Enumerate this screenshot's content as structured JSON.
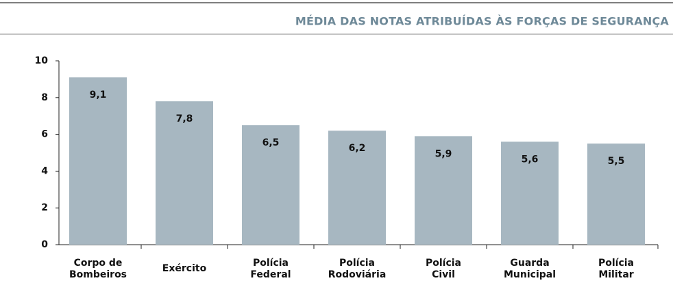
{
  "chart_data": {
    "type": "bar",
    "title": "MÉDIA DAS NOTAS ATRIBUÍDAS ÀS FORÇAS DE SEGURANÇA",
    "categories": [
      "Corpo de\nBombeiros",
      "Exército",
      "Polícia\nFederal",
      "Polícia\nRodoviária",
      "Polícia\nCivil",
      "Guarda\nMunicipal",
      "Polícia\nMilitar"
    ],
    "values": [
      9.1,
      7.8,
      6.5,
      6.2,
      5.9,
      5.6,
      5.5
    ],
    "value_labels": [
      "9,1",
      "7,8",
      "6,5",
      "6,2",
      "5,9",
      "5,6",
      "5,5"
    ],
    "color": "#a7b7c1",
    "ylim": [
      0,
      10
    ],
    "yticks": [
      0,
      2,
      4,
      6,
      8,
      10
    ],
    "grid": false
  }
}
